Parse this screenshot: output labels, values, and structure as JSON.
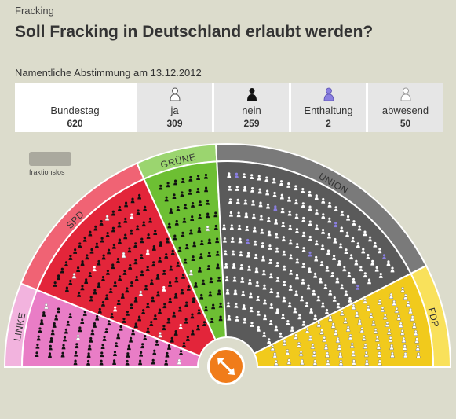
{
  "header": {
    "kicker": "Fracking",
    "title": "Soll Fracking in Deutschland erlaubt werden?",
    "subtitle": "Namentliche Abstimmung am 13.12.2012"
  },
  "stats": {
    "total": {
      "label": "Bundestag",
      "value": "620"
    },
    "ja": {
      "label": "ja",
      "value": "309",
      "icon": "person-outline-icon"
    },
    "nein": {
      "label": "nein",
      "value": "259",
      "icon": "person-filled-icon"
    },
    "enthaltung": {
      "label": "Enthaltung",
      "value": "2",
      "icon": "person-abstain-icon"
    },
    "abwesend": {
      "label": "abwesend",
      "value": "50",
      "icon": "person-absent-icon"
    }
  },
  "legend": {
    "label": "fraktionslos"
  },
  "parties": [
    {
      "name": "LINKE",
      "color": "#e97dc6",
      "band": "#f2b3de"
    },
    {
      "name": "SPD",
      "color": "#e3253a",
      "band": "#f06374"
    },
    {
      "name": "GRÜNE",
      "color": "#6dbf33",
      "band": "#9bd56f"
    },
    {
      "name": "UNION",
      "color": "#5a5a5a",
      "band": "#7a7a7a"
    },
    {
      "name": "FDP",
      "color": "#f1ca1c",
      "band": "#f9e15b"
    }
  ],
  "colors": {
    "ja": "#ffffff",
    "nein": "#111111",
    "enthaltung": "#8a7fe0",
    "accent": "#f07c1a"
  }
}
